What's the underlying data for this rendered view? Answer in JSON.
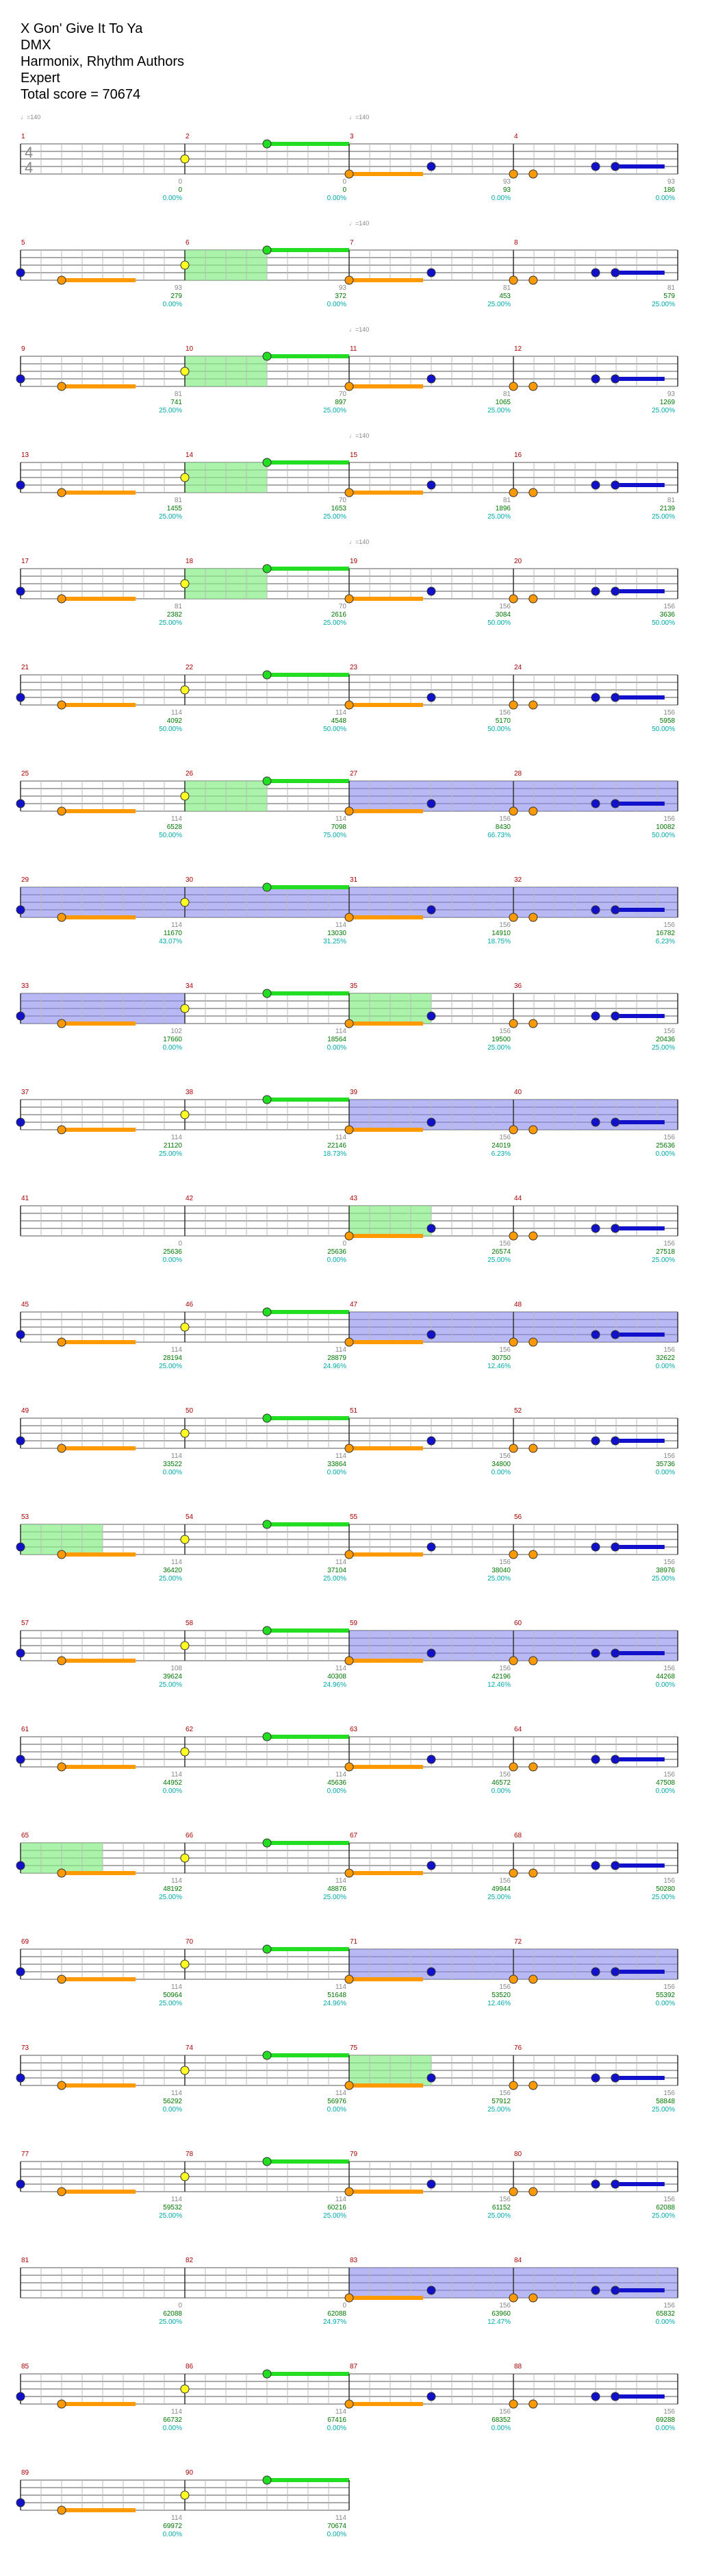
{
  "header": {
    "title": "X Gon' Give It To Ya",
    "artist": "DMX",
    "charter": "Harmonix, Rhythm Authors",
    "difficulty": "Expert",
    "total_score": "Total score = 70674"
  },
  "colors": {
    "green": "#22dd22",
    "red": "#ff2222",
    "yellow": "#ffff22",
    "blue": "#1111cc",
    "orange": "#ff9900",
    "starpower": "#88ee88",
    "overdrive": "#8888ee",
    "measure_number": "#aa0000",
    "score": "#007700",
    "multiplier": "#00aaaa",
    "tempo": "#888888"
  },
  "time_signature": [
    "4",
    "4"
  ],
  "tempo_marks": [
    {
      "measure": 1,
      "text": "♩=140"
    },
    {
      "measure": 3,
      "text": "♩=140"
    },
    {
      "measure": 7,
      "text": "♩=140"
    },
    {
      "measure": 11,
      "text": "♩=140"
    },
    {
      "measure": 15,
      "text": "♩=140"
    },
    {
      "measure": 19,
      "text": "♩=140"
    }
  ],
  "measures": [
    {
      "n": 1,
      "small": "0",
      "score": "0",
      "mult": "0.00%"
    },
    {
      "n": 2,
      "small": "0",
      "score": "0",
      "mult": "0.00%"
    },
    {
      "n": 3,
      "small": "93",
      "score": "93",
      "mult": "0.00%"
    },
    {
      "n": 4,
      "small": "93",
      "score": "186",
      "mult": "0.00%"
    },
    {
      "n": 5,
      "small": "93",
      "score": "279",
      "mult": "0.00%"
    },
    {
      "n": 6,
      "small": "93",
      "score": "372",
      "mult": "0.00%"
    },
    {
      "n": 7,
      "small": "81",
      "score": "453",
      "mult": "25.00%"
    },
    {
      "n": 8,
      "small": "81",
      "score": "579",
      "mult": "25.00%"
    },
    {
      "n": 9,
      "small": "81",
      "score": "741",
      "mult": "25.00%"
    },
    {
      "n": 10,
      "small": "70",
      "score": "897",
      "mult": "25.00%"
    },
    {
      "n": 11,
      "small": "81",
      "score": "1065",
      "mult": "25.00%"
    },
    {
      "n": 12,
      "small": "93",
      "score": "1269",
      "mult": "25.00%"
    },
    {
      "n": 13,
      "small": "81",
      "score": "1455",
      "mult": "25.00%"
    },
    {
      "n": 14,
      "small": "70",
      "score": "1653",
      "mult": "25.00%"
    },
    {
      "n": 15,
      "small": "81",
      "score": "1896",
      "mult": "25.00%"
    },
    {
      "n": 16,
      "small": "81",
      "score": "2139",
      "mult": "25.00%"
    },
    {
      "n": 17,
      "small": "81",
      "score": "2382",
      "mult": "25.00%"
    },
    {
      "n": 18,
      "small": "70",
      "score": "2616",
      "mult": "25.00%"
    },
    {
      "n": 19,
      "small": "156",
      "score": "3084",
      "mult": "50.00%"
    },
    {
      "n": 20,
      "small": "156",
      "score": "3636",
      "mult": "50.00%"
    },
    {
      "n": 21,
      "small": "114",
      "score": "4092",
      "mult": "50.00%"
    },
    {
      "n": 22,
      "small": "114",
      "score": "4548",
      "mult": "50.00%"
    },
    {
      "n": 23,
      "small": "156",
      "score": "5170",
      "mult": "50.00%"
    },
    {
      "n": 24,
      "small": "156",
      "score": "5958",
      "mult": "50.00%"
    },
    {
      "n": 25,
      "small": "114",
      "score": "6528",
      "mult": "50.00%"
    },
    {
      "n": 26,
      "small": "114",
      "score": "7098",
      "mult": "75.00%"
    },
    {
      "n": 27,
      "small": "156",
      "score": "8430",
      "mult": "66.73%"
    },
    {
      "n": 28,
      "small": "156",
      "score": "10082",
      "mult": "50.00%"
    },
    {
      "n": 29,
      "small": "114",
      "score": "11670",
      "mult": "43.07%"
    },
    {
      "n": 30,
      "small": "114",
      "score": "13030",
      "mult": "31.25%"
    },
    {
      "n": 31,
      "small": "156",
      "score": "14910",
      "mult": "18.75%"
    },
    {
      "n": 32,
      "small": "156",
      "score": "16782",
      "mult": "6.23%"
    },
    {
      "n": 33,
      "small": "102",
      "score": "17660",
      "mult": "0.00%"
    },
    {
      "n": 34,
      "small": "114",
      "score": "18564",
      "mult": "0.00%"
    },
    {
      "n": 35,
      "small": "156",
      "score": "19500",
      "mult": "25.00%"
    },
    {
      "n": 36,
      "small": "156",
      "score": "20436",
      "mult": "25.00%"
    },
    {
      "n": 37,
      "small": "114",
      "score": "21120",
      "mult": "25.00%"
    },
    {
      "n": 38,
      "small": "114",
      "score": "22146",
      "mult": "18.73%"
    },
    {
      "n": 39,
      "small": "156",
      "score": "24019",
      "mult": "6.23%"
    },
    {
      "n": 40,
      "small": "156",
      "score": "25636",
      "mult": "0.00%"
    },
    {
      "n": 41,
      "small": "0",
      "score": "25636",
      "mult": "0.00%"
    },
    {
      "n": 42,
      "small": "0",
      "score": "25636",
      "mult": "0.00%"
    },
    {
      "n": 43,
      "small": "156",
      "score": "26574",
      "mult": "25.00%"
    },
    {
      "n": 44,
      "small": "156",
      "score": "27518",
      "mult": "25.00%"
    },
    {
      "n": 45,
      "small": "114",
      "score": "28194",
      "mult": "25.00%"
    },
    {
      "n": 46,
      "small": "114",
      "score": "28879",
      "mult": "24.96%"
    },
    {
      "n": 47,
      "small": "156",
      "score": "30750",
      "mult": "12.46%"
    },
    {
      "n": 48,
      "small": "156",
      "score": "32622",
      "mult": "0.00%"
    },
    {
      "n": 49,
      "small": "114",
      "score": "33522",
      "mult": "0.00%"
    },
    {
      "n": 50,
      "small": "114",
      "score": "33864",
      "mult": "0.00%"
    },
    {
      "n": 51,
      "small": "156",
      "score": "34800",
      "mult": "0.00%"
    },
    {
      "n": 52,
      "small": "156",
      "score": "35736",
      "mult": "0.00%"
    },
    {
      "n": 53,
      "small": "114",
      "score": "36420",
      "mult": "25.00%"
    },
    {
      "n": 54,
      "small": "114",
      "score": "37104",
      "mult": "25.00%"
    },
    {
      "n": 55,
      "small": "156",
      "score": "38040",
      "mult": "25.00%"
    },
    {
      "n": 56,
      "small": "156",
      "score": "38976",
      "mult": "25.00%"
    },
    {
      "n": 57,
      "small": "108",
      "score": "39624",
      "mult": "25.00%"
    },
    {
      "n": 58,
      "small": "114",
      "score": "40308",
      "mult": "24.96%"
    },
    {
      "n": 59,
      "small": "156",
      "score": "42196",
      "mult": "12.46%"
    },
    {
      "n": 60,
      "small": "156",
      "score": "44268",
      "mult": "0.00%"
    },
    {
      "n": 61,
      "small": "114",
      "score": "44952",
      "mult": "0.00%"
    },
    {
      "n": 62,
      "small": "114",
      "score": "45636",
      "mult": "0.00%"
    },
    {
      "n": 63,
      "small": "156",
      "score": "46572",
      "mult": "0.00%"
    },
    {
      "n": 64,
      "small": "156",
      "score": "47508",
      "mult": "0.00%"
    },
    {
      "n": 65,
      "small": "114",
      "score": "48192",
      "mult": "25.00%"
    },
    {
      "n": 66,
      "small": "114",
      "score": "48876",
      "mult": "25.00%"
    },
    {
      "n": 67,
      "small": "156",
      "score": "49944",
      "mult": "25.00%"
    },
    {
      "n": 68,
      "small": "156",
      "score": "50280",
      "mult": "25.00%"
    },
    {
      "n": 69,
      "small": "114",
      "score": "50964",
      "mult": "25.00%"
    },
    {
      "n": 70,
      "small": "114",
      "score": "51648",
      "mult": "24.96%"
    },
    {
      "n": 71,
      "small": "156",
      "score": "53520",
      "mult": "12.46%"
    },
    {
      "n": 72,
      "small": "156",
      "score": "55392",
      "mult": "0.00%"
    },
    {
      "n": 73,
      "small": "114",
      "score": "56292",
      "mult": "0.00%"
    },
    {
      "n": 74,
      "small": "114",
      "score": "56976",
      "mult": "0.00%"
    },
    {
      "n": 75,
      "small": "156",
      "score": "57912",
      "mult": "25.00%"
    },
    {
      "n": 76,
      "small": "156",
      "score": "58848",
      "mult": "25.00%"
    },
    {
      "n": 77,
      "small": "114",
      "score": "59532",
      "mult": "25.00%"
    },
    {
      "n": 78,
      "small": "114",
      "score": "60216",
      "mult": "25.00%"
    },
    {
      "n": 79,
      "small": "156",
      "score": "61152",
      "mult": "25.00%"
    },
    {
      "n": 80,
      "small": "156",
      "score": "62088",
      "mult": "25.00%"
    },
    {
      "n": 81,
      "small": "0",
      "score": "62088",
      "mult": "25.00%"
    },
    {
      "n": 82,
      "small": "0",
      "score": "62088",
      "mult": "24.97%"
    },
    {
      "n": 83,
      "small": "156",
      "score": "63960",
      "mult": "12.47%"
    },
    {
      "n": 84,
      "small": "156",
      "score": "65832",
      "mult": "0.00%"
    },
    {
      "n": 85,
      "small": "114",
      "score": "66732",
      "mult": "0.00%"
    },
    {
      "n": 86,
      "small": "114",
      "score": "67416",
      "mult": "0.00%"
    },
    {
      "n": 87,
      "small": "156",
      "score": "68352",
      "mult": "0.00%"
    },
    {
      "n": 88,
      "small": "156",
      "score": "69288",
      "mult": "0.00%"
    },
    {
      "n": 89,
      "small": "114",
      "score": "69972",
      "mult": "0.00%"
    },
    {
      "n": 90,
      "small": "114",
      "score": "70674",
      "mult": "0.00%"
    }
  ]
}
